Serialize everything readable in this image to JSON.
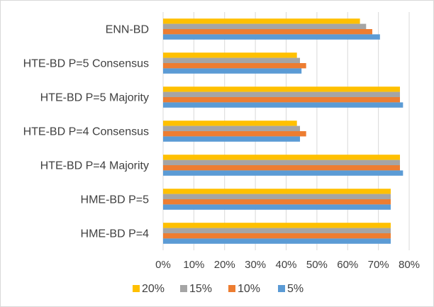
{
  "chart_data": {
    "type": "bar",
    "orientation": "horizontal",
    "categories": [
      "ENN-BD",
      "HTE-BD P=5 Consensus",
      "HTE-BD P=5 Majority",
      "HTE-BD P=4 Consensus",
      "HTE-BD P=4 Majority",
      "HME-BD P=5",
      "HME-BD P=4"
    ],
    "series": [
      {
        "name": "20%",
        "color": "#FFC000",
        "values": [
          64,
          43.5,
          77,
          43.5,
          77,
          74,
          74
        ]
      },
      {
        "name": "15%",
        "color": "#A5A5A5",
        "values": [
          66,
          44.5,
          77,
          44.5,
          77,
          74,
          74
        ]
      },
      {
        "name": "10%",
        "color": "#ED7D31",
        "values": [
          68,
          46.5,
          77,
          46.5,
          77,
          74,
          74
        ]
      },
      {
        "name": "5%",
        "color": "#5B9BD5",
        "values": [
          70.5,
          45,
          78,
          44.5,
          78,
          74,
          74
        ]
      }
    ],
    "xlim": [
      0,
      80
    ],
    "ticks": [
      "0%",
      "10%",
      "20%",
      "30%",
      "40%",
      "50%",
      "60%",
      "70%",
      "80%"
    ],
    "legend_position": "bottom",
    "grid": true,
    "title": "",
    "xlabel": "",
    "ylabel": ""
  }
}
